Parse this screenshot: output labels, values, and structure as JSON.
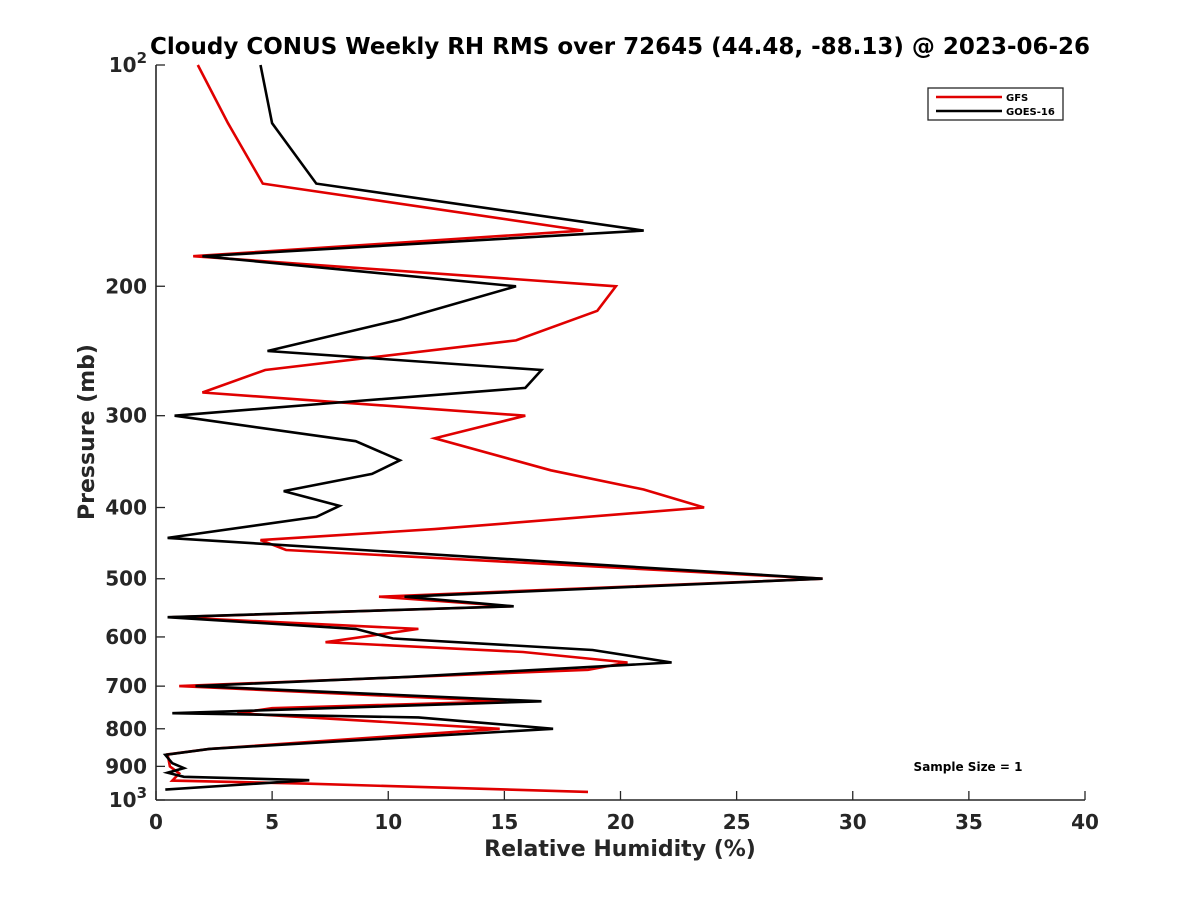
{
  "chart_data": {
    "type": "line",
    "title": "Cloudy CONUS Weekly RH RMS over 72645 (44.48, -88.13) @ 2023-06-26",
    "xlabel": "Relative Humidity (%)",
    "ylabel": "Pressure (mb)",
    "xlim": [
      0,
      40
    ],
    "ylim": [
      100,
      1000
    ],
    "y_scale": "log",
    "y_reversed": true,
    "grid": false,
    "legend_position": "top-right",
    "x_ticks": [
      "0",
      "5",
      "10",
      "15",
      "20",
      "25",
      "30",
      "35",
      "40"
    ],
    "y_ticks": [
      {
        "value": 100,
        "base": "10",
        "exp": "2"
      },
      {
        "value": 200,
        "label": "200"
      },
      {
        "value": 300,
        "label": "300"
      },
      {
        "value": 400,
        "label": "400"
      },
      {
        "value": 500,
        "label": "500"
      },
      {
        "value": 600,
        "label": "600"
      },
      {
        "value": 700,
        "label": "700"
      },
      {
        "value": 800,
        "label": "800"
      },
      {
        "value": 900,
        "label": "900"
      },
      {
        "value": 1000,
        "base": "10",
        "exp": "3"
      }
    ],
    "series": [
      {
        "name": "GFS",
        "color": "#e00000",
        "points": [
          [
            1.8,
            100
          ],
          [
            3.1,
            120
          ],
          [
            4.6,
            145
          ],
          [
            18.4,
            168
          ],
          [
            1.6,
            182
          ],
          [
            19.8,
            200
          ],
          [
            19.0,
            216
          ],
          [
            15.5,
            237
          ],
          [
            4.7,
            260
          ],
          [
            2.0,
            279
          ],
          [
            15.9,
            300
          ],
          [
            12.0,
            322
          ],
          [
            17.0,
            356
          ],
          [
            21.0,
            378
          ],
          [
            23.6,
            400
          ],
          [
            12.0,
            428
          ],
          [
            4.5,
            443
          ],
          [
            5.6,
            457
          ],
          [
            28.7,
            500
          ],
          [
            9.6,
            529
          ],
          [
            15.3,
            545
          ],
          [
            0.7,
            564
          ],
          [
            11.3,
            585
          ],
          [
            7.3,
            610
          ],
          [
            15.8,
            629
          ],
          [
            20.3,
            650
          ],
          [
            18.6,
            665
          ],
          [
            1.0,
            700
          ],
          [
            15.1,
            734
          ],
          [
            5.0,
            750
          ],
          [
            3.5,
            762
          ],
          [
            14.8,
            800
          ],
          [
            2.3,
            852
          ],
          [
            0.5,
            867
          ],
          [
            0.6,
            900
          ],
          [
            1.0,
            920
          ],
          [
            0.7,
            941
          ],
          [
            6.4,
            950
          ],
          [
            18.6,
            975
          ]
        ]
      },
      {
        "name": "GOES-16",
        "color": "#000000",
        "points": [
          [
            4.5,
            100
          ],
          [
            5.0,
            120
          ],
          [
            6.9,
            145
          ],
          [
            21.0,
            168
          ],
          [
            2.0,
            182
          ],
          [
            15.5,
            200
          ],
          [
            10.5,
            222
          ],
          [
            4.8,
            245
          ],
          [
            16.6,
            260
          ],
          [
            15.9,
            275
          ],
          [
            8.4,
            287
          ],
          [
            0.8,
            300
          ],
          [
            8.6,
            325
          ],
          [
            10.5,
            345
          ],
          [
            9.3,
            360
          ],
          [
            5.5,
            380
          ],
          [
            7.9,
            398
          ],
          [
            6.9,
            412
          ],
          [
            0.5,
            440
          ],
          [
            28.7,
            500
          ],
          [
            10.7,
            529
          ],
          [
            15.4,
            545
          ],
          [
            0.5,
            564
          ],
          [
            8.6,
            585
          ],
          [
            10.2,
            603
          ],
          [
            18.8,
            625
          ],
          [
            22.2,
            650
          ],
          [
            10.8,
            680
          ],
          [
            1.7,
            700
          ],
          [
            16.6,
            734
          ],
          [
            0.7,
            762
          ],
          [
            11.3,
            772
          ],
          [
            17.1,
            800
          ],
          [
            2.3,
            852
          ],
          [
            0.4,
            868
          ],
          [
            0.7,
            891
          ],
          [
            1.2,
            905
          ],
          [
            0.5,
            918
          ],
          [
            1.2,
            930
          ],
          [
            6.6,
            940
          ],
          [
            0.4,
            968
          ]
        ]
      }
    ],
    "annotations": [
      "Sample Size = 1"
    ]
  }
}
